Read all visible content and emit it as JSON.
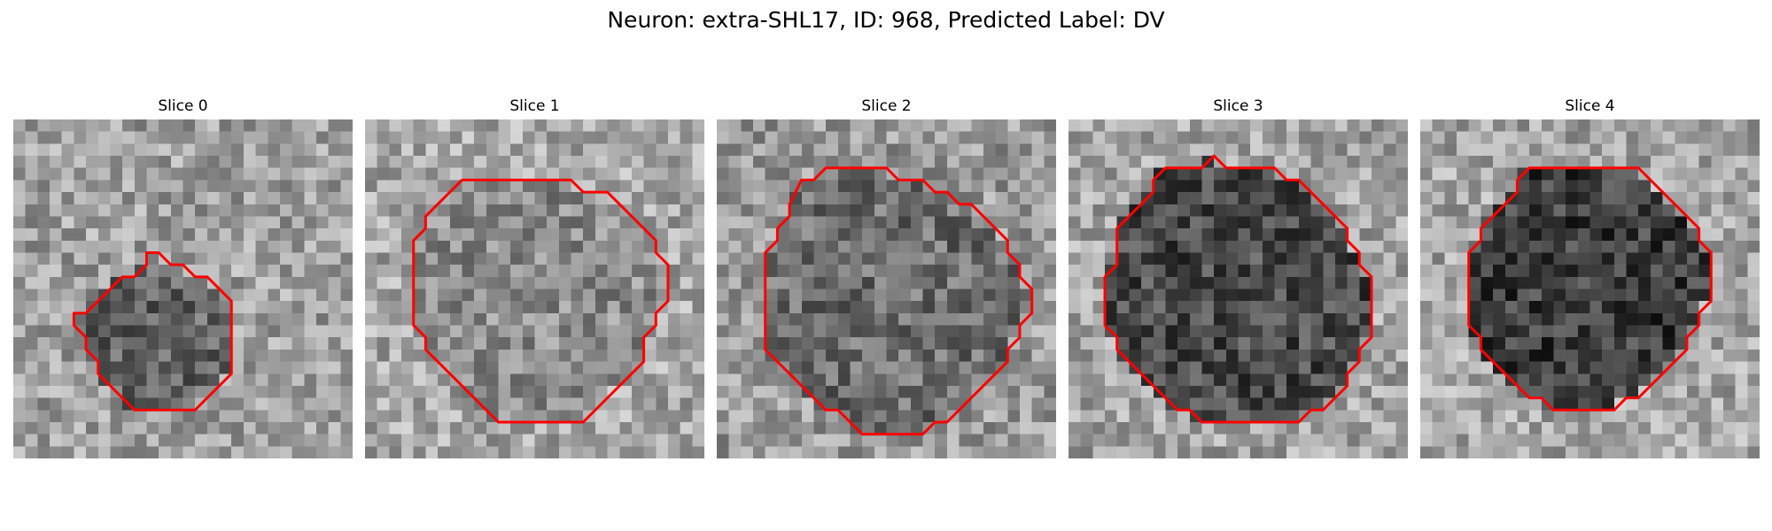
{
  "figure": {
    "title": "Neuron: extra-SHL17, ID: 968, Predicted Label: DV",
    "contour_color": "#ff0000"
  },
  "panels": [
    {
      "title": "Slice 0",
      "region_shade": "#646464",
      "background_shade": "#a0a0a0"
    },
    {
      "title": "Slice 1",
      "region_shade": "#8c8c8c",
      "background_shade": "#a8a8a8"
    },
    {
      "title": "Slice 2",
      "region_shade": "#6e6e6e",
      "background_shade": "#9a9a9a"
    },
    {
      "title": "Slice 3",
      "region_shade": "#4a4a4a",
      "background_shade": "#a4a4a4"
    },
    {
      "title": "Slice 4",
      "region_shade": "#3c3c3c",
      "background_shade": "#a6a6a6"
    }
  ]
}
